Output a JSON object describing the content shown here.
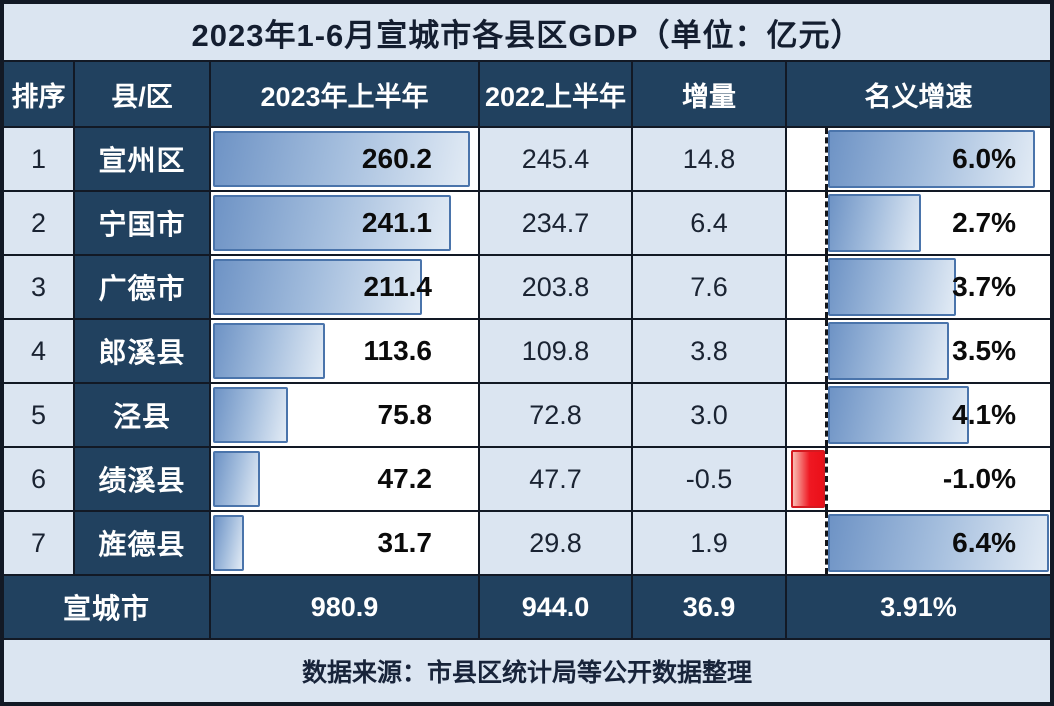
{
  "title": "2023年1-6月宣城市各县区GDP（单位：亿元）",
  "header": {
    "rank": "排序",
    "district": "县/区",
    "gdp2023": "2023年上半年",
    "gdp2022": "2022上半年",
    "delta": "增量",
    "growth": "名义增速"
  },
  "rows": [
    {
      "rank": "1",
      "district": "宣州区",
      "gdp2023": "260.2",
      "gdp2022": "245.4",
      "delta": "14.8",
      "growth": "6.0%",
      "gdp2023_num": 260.2,
      "growth_num": 6.0
    },
    {
      "rank": "2",
      "district": "宁国市",
      "gdp2023": "241.1",
      "gdp2022": "234.7",
      "delta": "6.4",
      "growth": "2.7%",
      "gdp2023_num": 241.1,
      "growth_num": 2.7
    },
    {
      "rank": "3",
      "district": "广德市",
      "gdp2023": "211.4",
      "gdp2022": "203.8",
      "delta": "7.6",
      "growth": "3.7%",
      "gdp2023_num": 211.4,
      "growth_num": 3.7
    },
    {
      "rank": "4",
      "district": "郎溪县",
      "gdp2023": "113.6",
      "gdp2022": "109.8",
      "delta": "3.8",
      "growth": "3.5%",
      "gdp2023_num": 113.6,
      "growth_num": 3.5
    },
    {
      "rank": "5",
      "district": "泾县",
      "gdp2023": "75.8",
      "gdp2022": "72.8",
      "delta": "3.0",
      "growth": "4.1%",
      "gdp2023_num": 75.8,
      "growth_num": 4.1
    },
    {
      "rank": "6",
      "district": "绩溪县",
      "gdp2023": "47.2",
      "gdp2022": "47.7",
      "delta": "-0.5",
      "growth": "-1.0%",
      "gdp2023_num": 47.2,
      "growth_num": -1.0
    },
    {
      "rank": "7",
      "district": "旌德县",
      "gdp2023": "31.7",
      "gdp2022": "29.8",
      "delta": "1.9",
      "growth": "6.4%",
      "gdp2023_num": 31.7,
      "growth_num": 6.4
    }
  ],
  "total": {
    "label": "宣城市",
    "gdp2023": "980.9",
    "gdp2022": "944.0",
    "delta": "36.9",
    "growth": "3.91%"
  },
  "footer": "数据来源：市县区统计局等公开数据整理",
  "colors": {
    "navy": "#21415f",
    "light_cell": "#dbe5f1",
    "grid_line": "#121925",
    "bar_border": "#4a74ab",
    "bar_fill_dark": "#6e93c5",
    "bar_fill_light": "#e2ebf5",
    "negative_red": "#ee1c24"
  },
  "chart_data": {
    "type": "table",
    "title": "2023年1-6月宣城市各县区GDP（单位：亿元）",
    "columns": [
      "排序",
      "县/区",
      "2023年上半年",
      "2022上半年",
      "增量",
      "名义增速"
    ],
    "categories": [
      "宣州区",
      "宁国市",
      "广德市",
      "郎溪县",
      "泾县",
      "绩溪县",
      "旌德县"
    ],
    "series": [
      {
        "name": "2023年上半年",
        "values": [
          260.2,
          241.1,
          211.4,
          113.6,
          75.8,
          47.2,
          31.7
        ]
      },
      {
        "name": "2022上半年",
        "values": [
          245.4,
          234.7,
          203.8,
          109.8,
          72.8,
          47.7,
          29.8
        ]
      },
      {
        "name": "增量",
        "values": [
          14.8,
          6.4,
          7.6,
          3.8,
          3.0,
          -0.5,
          1.9
        ]
      },
      {
        "name": "名义增速(%)",
        "values": [
          6.0,
          2.7,
          3.7,
          3.5,
          4.1,
          -1.0,
          6.4
        ]
      }
    ],
    "total_row": {
      "label": "宣城市",
      "values": [
        980.9,
        944.0,
        36.9,
        "3.91%"
      ]
    },
    "in_cell_bar_columns": [
      "2023年上半年",
      "名义增速"
    ],
    "bar_axis_gdp": [
      0,
      266
    ],
    "bar_axis_growth_pct": [
      -1.1,
      6.5
    ],
    "negative_bar_color": "red",
    "source": "数据来源：市县区统计局等公开数据整理"
  }
}
